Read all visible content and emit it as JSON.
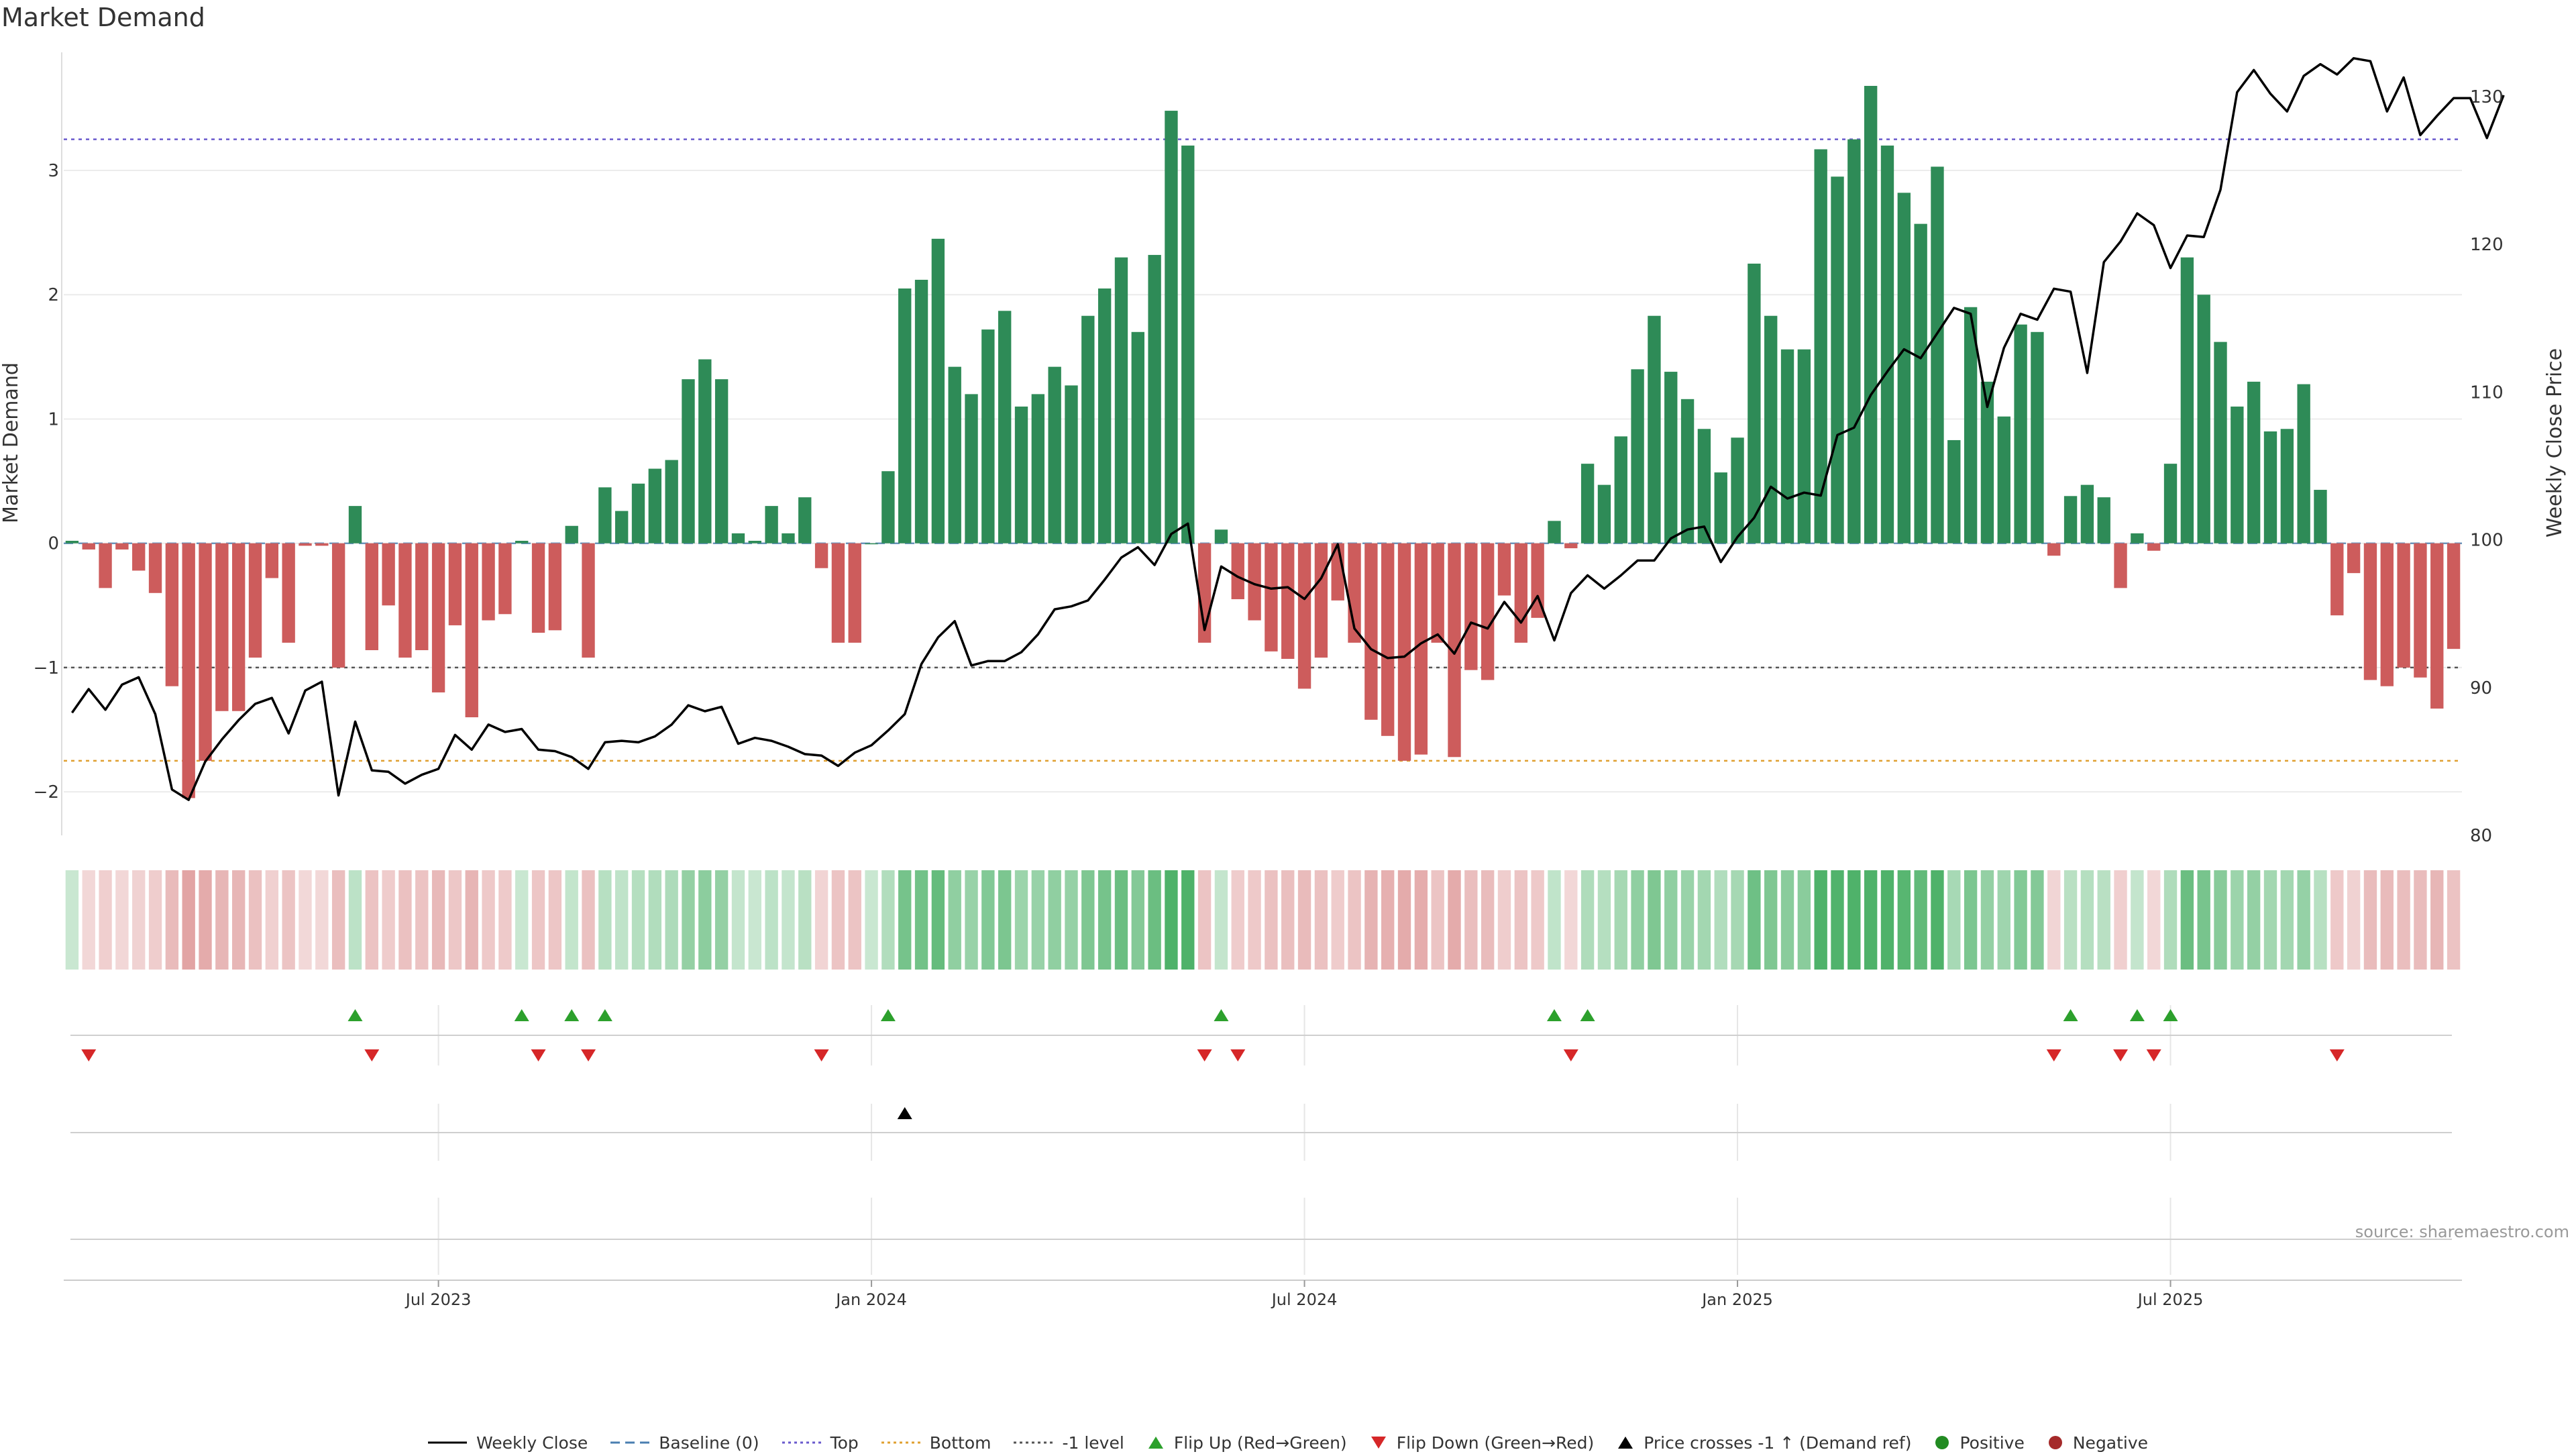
{
  "title": "Market Demand",
  "source": "source: sharemaestro.com",
  "colors": {
    "positive": "#2e8b57",
    "negative": "#cd5c5c",
    "price": "#000000",
    "top": "#6a5acd",
    "bottom": "#e0a030",
    "level": "#555555",
    "flip_up": "#2ca02c",
    "flip_down": "#d62728"
  },
  "legend": [
    {
      "key": "weekly_close",
      "label": "Weekly Close"
    },
    {
      "key": "baseline",
      "label": "Baseline (0)"
    },
    {
      "key": "top",
      "label": "Top"
    },
    {
      "key": "bottom",
      "label": "Bottom"
    },
    {
      "key": "level",
      "label": "-1 level"
    },
    {
      "key": "flip_up",
      "label": "Flip Up (Red→Green)"
    },
    {
      "key": "flip_down",
      "label": "Flip Down (Green→Red)"
    },
    {
      "key": "cross",
      "label": "Price crosses -1 ↑ (Demand ref)"
    },
    {
      "key": "positive",
      "label": "Positive"
    },
    {
      "key": "negative",
      "label": "Negative"
    }
  ],
  "chart_data": {
    "type": "bar",
    "ylabel": "Market Demand",
    "y2label": "Weekly Close Price",
    "ylim": [
      -2.35,
      3.95
    ],
    "y2lim": [
      80,
      133
    ],
    "yticks": [
      -2,
      -1,
      0,
      1,
      2,
      3
    ],
    "y2ticks": [
      80,
      90,
      100,
      110,
      120,
      130
    ],
    "x_tick_labels": [
      {
        "index": 22,
        "label": "Jul 2023"
      },
      {
        "index": 48,
        "label": "Jan 2024"
      },
      {
        "index": 74,
        "label": "Jul 2024"
      },
      {
        "index": 100,
        "label": "Jan 2025"
      },
      {
        "index": 126,
        "label": "Jul 2025"
      }
    ],
    "reference_lines": {
      "top": 3.25,
      "bottom": -1.75,
      "level": -1.0,
      "baseline": 0
    },
    "series": [
      {
        "name": "Market Demand",
        "type": "bar",
        "values": [
          0.02,
          -0.05,
          -0.36,
          -0.05,
          -0.22,
          -0.4,
          -1.15,
          -2.05,
          -1.75,
          -1.35,
          -1.35,
          -0.92,
          -0.28,
          -0.8,
          -0.02,
          -0.02,
          -1.0,
          0.3,
          -0.86,
          -0.5,
          -0.92,
          -0.86,
          -1.2,
          -0.66,
          -1.4,
          -0.62,
          -0.57,
          0.02,
          -0.72,
          -0.7,
          0.14,
          -0.92,
          0.45,
          0.26,
          0.48,
          0.6,
          0.67,
          1.32,
          1.48,
          1.32,
          0.08,
          0.02,
          0.3,
          0.08,
          0.37,
          -0.2,
          -0.8,
          -0.8,
          0.0,
          0.58,
          2.05,
          2.12,
          2.45,
          1.42,
          1.2,
          1.72,
          1.87,
          1.1,
          1.2,
          1.42,
          1.27,
          1.83,
          2.05,
          2.3,
          1.7,
          2.32,
          3.48,
          3.2,
          -0.8,
          0.11,
          -0.45,
          -0.62,
          -0.87,
          -0.93,
          -1.17,
          -0.92,
          -0.46,
          -0.8,
          -1.42,
          -1.55,
          -1.75,
          -1.7,
          -0.8,
          -1.72,
          -1.02,
          -1.1,
          -0.42,
          -0.8,
          -0.6,
          0.18,
          -0.04,
          0.64,
          0.47,
          0.86,
          1.4,
          1.83,
          1.38,
          1.16,
          0.92,
          0.57,
          0.85,
          2.25,
          1.83,
          1.56,
          1.56,
          3.17,
          2.95,
          3.25,
          3.68,
          3.2,
          2.82,
          2.57,
          3.03,
          0.83,
          1.9,
          1.3,
          1.02,
          1.76,
          1.7,
          -0.1,
          0.38,
          0.47,
          0.37,
          -0.36,
          0.08,
          -0.06,
          0.64,
          2.3,
          2.0,
          1.62,
          1.1,
          1.3,
          0.9,
          0.92,
          1.28,
          0.43,
          -0.58,
          -0.24,
          -1.1,
          -1.15,
          -1.0,
          -1.08,
          -1.33,
          -0.85
        ]
      },
      {
        "name": "Weekly Close",
        "type": "line",
        "values": [
          88.3,
          89.9,
          88.5,
          90.2,
          90.7,
          88.2,
          83.1,
          82.4,
          85.0,
          86.5,
          87.8,
          88.9,
          89.3,
          86.9,
          89.8,
          90.4,
          82.7,
          87.7,
          84.4,
          84.3,
          83.5,
          84.1,
          84.5,
          86.8,
          85.8,
          87.5,
          87.0,
          87.2,
          85.8,
          85.7,
          85.3,
          84.5,
          86.3,
          86.4,
          86.3,
          86.7,
          87.5,
          88.8,
          88.4,
          88.7,
          86.2,
          86.6,
          86.4,
          86.0,
          85.5,
          85.4,
          84.7,
          85.6,
          86.1,
          87.1,
          88.2,
          91.6,
          93.4,
          94.5,
          91.5,
          91.8,
          91.8,
          92.4,
          93.6,
          95.3,
          95.5,
          95.9,
          97.3,
          98.8,
          99.5,
          98.3,
          100.4,
          101.1,
          93.9,
          98.2,
          97.5,
          97.0,
          96.7,
          96.8,
          96.0,
          97.4,
          99.7,
          94.0,
          92.6,
          92.0,
          92.1,
          93.0,
          93.6,
          92.3,
          94.4,
          94.0,
          95.8,
          94.4,
          96.2,
          93.2,
          96.4,
          97.6,
          96.7,
          97.6,
          98.6,
          98.6,
          100.1,
          100.7,
          100.9,
          98.5,
          100.2,
          101.5,
          103.6,
          102.8,
          103.2,
          103.0,
          107.1,
          107.6,
          109.8,
          111.4,
          112.9,
          112.3,
          114.0,
          115.7,
          115.3,
          109.0,
          113.0,
          115.3,
          114.9,
          117.0,
          116.8,
          111.3,
          118.8,
          120.2,
          122.1,
          121.3,
          118.4,
          120.6,
          120.5,
          123.7,
          130.3,
          131.8,
          130.2,
          129.0,
          131.4,
          132.2,
          131.5,
          132.6,
          132.4,
          129.0,
          131.3,
          127.4,
          128.7,
          129.9,
          129.9,
          127.2,
          130.1
        ]
      }
    ],
    "strip_shading": "demand intensity per week",
    "events": {
      "flip_up": [
        17,
        27,
        30,
        32,
        49,
        69,
        89,
        91,
        120,
        124,
        126
      ],
      "flip_down": [
        1,
        18,
        28,
        31,
        45,
        68,
        70,
        90,
        119,
        123,
        125,
        136
      ],
      "price_cross": [
        50
      ]
    }
  }
}
